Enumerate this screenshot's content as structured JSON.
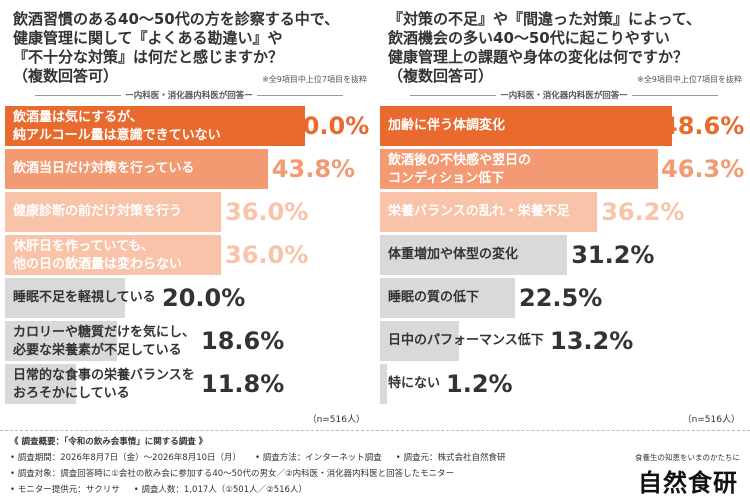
{
  "left": {
    "question": [
      "飲酒習慣のある40～50代の方を診察する中で、",
      "健康管理に関して『よくある勘違い』や",
      "『不十分な対策』は何だと感じますか？",
      "（複数回答可）"
    ],
    "note": "※全9項目中上位7項目を抜粋",
    "source": "ー内科医・消化器内科医が回答ー",
    "n": "（n=516人）"
  },
  "right": {
    "question": [
      "『対策の不足』や『間違った対策』によって、",
      "飲酒機会の多い40～50代に起こりやすい",
      "健康管理上の課題や身体の変化は何ですか？",
      "（複数回答可）"
    ],
    "note": "※全9項目中上位7項目を抜粋",
    "source": "ー内科医・消化器内科医が回答ー",
    "n": "（n=516人）"
  },
  "chart_data": [
    {
      "type": "bar",
      "orientation": "horizontal",
      "categories": [
        [
          "飲酒量は気にするが、",
          "純アルコール量は意識できていない"
        ],
        [
          "飲酒当日だけ対策を行っている"
        ],
        [
          "健康診断の前だけ対策を行う"
        ],
        [
          "休肝日を作っていても、",
          "他の日の飲酒量は変わらない"
        ],
        [
          "睡眠不足を軽視している"
        ],
        [
          "カロリーや糖質だけを気にし、",
          "必要な栄養素が不足している"
        ],
        [
          "日常的な食事の栄養バランスを",
          "おろそかにしている"
        ]
      ],
      "values": [
        50.0,
        43.8,
        36.0,
        36.0,
        20.0,
        18.6,
        11.8
      ],
      "labels": [
        "50.0%",
        "43.8%",
        "36.0%",
        "36.0%",
        "20.0%",
        "18.6%",
        "11.8%"
      ],
      "xlim": [
        0,
        55
      ],
      "colors": [
        "#e86a2e",
        "#f39a73",
        "#f8c3a9",
        "#f8c3a9",
        "#d9d9d9",
        "#d9d9d9",
        "#d9d9d9"
      ],
      "value_colors": [
        "#e86a2e",
        "#f39a73",
        "#f8c3a9",
        "#f8c3a9",
        "#333333",
        "#333333",
        "#333333"
      ],
      "label_colors": [
        "#ffffff",
        "#ffffff",
        "#ffffff",
        "#ffffff",
        "#333333",
        "#333333",
        "#333333"
      ]
    },
    {
      "type": "bar",
      "orientation": "horizontal",
      "categories": [
        [
          "加齢に伴う体調変化"
        ],
        [
          "飲酒後の不快感や翌日の",
          "コンディション低下"
        ],
        [
          "栄養バランスの乱れ・栄養不足"
        ],
        [
          "体重増加や体型の変化"
        ],
        [
          "睡眠の質の低下"
        ],
        [
          "日中のパフォーマンス低下"
        ],
        [
          "特にない"
        ]
      ],
      "values": [
        48.6,
        46.3,
        36.2,
        31.2,
        22.5,
        13.2,
        1.2
      ],
      "labels": [
        "48.6%",
        "46.3%",
        "36.2%",
        "31.2%",
        "22.5%",
        "13.2%",
        "1.2%"
      ],
      "xlim": [
        0,
        55
      ],
      "colors": [
        "#e86a2e",
        "#f39a73",
        "#f8c3a9",
        "#d9d9d9",
        "#d9d9d9",
        "#d9d9d9",
        "#d9d9d9"
      ],
      "value_colors": [
        "#e86a2e",
        "#f39a73",
        "#f8c3a9",
        "#333333",
        "#333333",
        "#333333",
        "#333333"
      ],
      "label_colors": [
        "#ffffff",
        "#ffffff",
        "#ffffff",
        "#333333",
        "#333333",
        "#333333",
        "#333333"
      ]
    }
  ],
  "footer": {
    "title": "《 調査概要：「令和の飲み会事情」に関する調査 》",
    "line1": [
      "• 調査期間：2026年8月7日（金）～2026年8月10日（月）",
      "• 調査方法：インターネット調査",
      "• 調査元：株式会社自然食研"
    ],
    "line2": [
      "• 調査対象：調査回答時に①会社の飲み会に参加する40～50代の男女／②内科医・消化器内科医と回答したモニター"
    ],
    "line3": [
      "• モニター提供元：サクリサ",
      "• 調査人数：1,017人（①501人／②516人）"
    ],
    "logo_tagline": "食養生の知恵をいまのかたちに",
    "logo": "自然食研"
  }
}
